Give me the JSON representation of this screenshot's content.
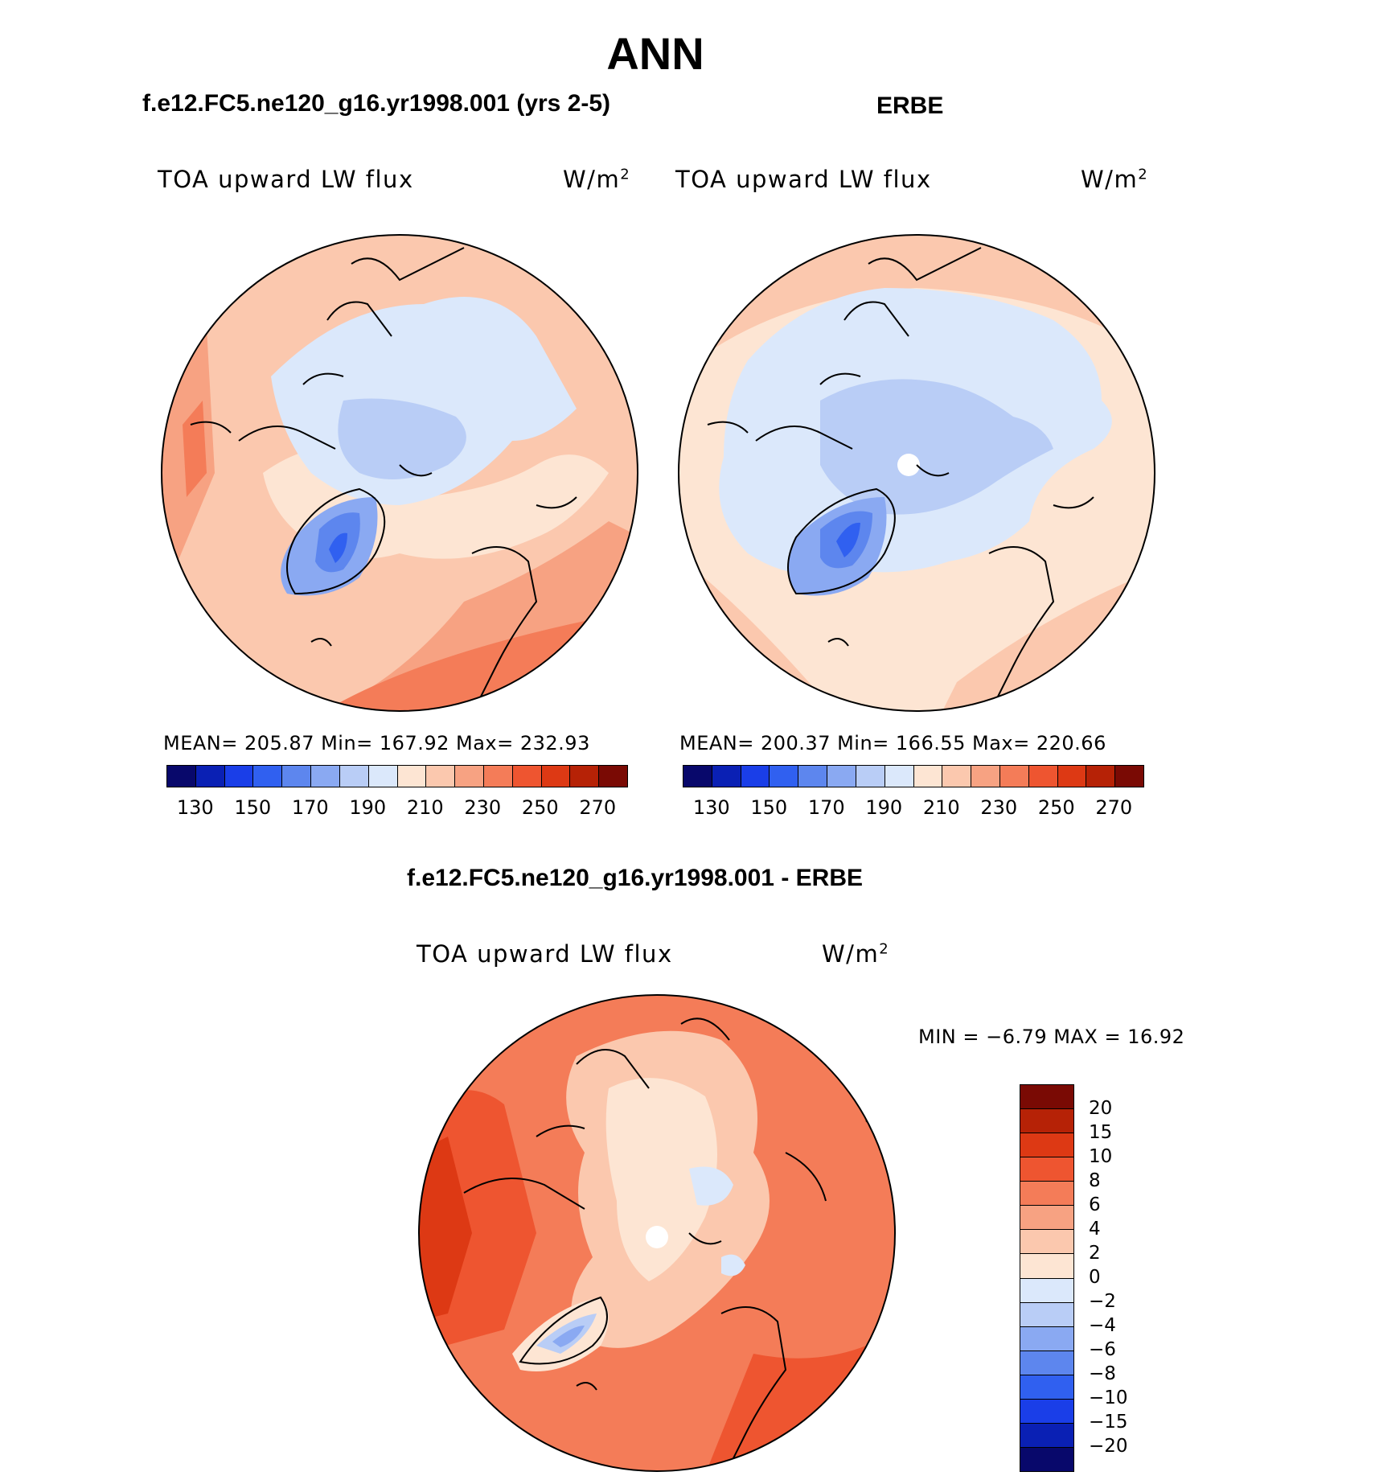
{
  "main_title": "ANN",
  "panels": [
    {
      "case_title": "f.e12.FC5.ne120_g16.yr1998.001 (yrs 2-5)",
      "variable": "TOA upward LW flux",
      "units_base": "W/m",
      "units_exp": "2",
      "stats": "MEAN= 205.87   Min= 167.92   Max= 232.93"
    },
    {
      "case_title": "ERBE",
      "variable": "TOA upward LW flux",
      "units_base": "W/m",
      "units_exp": "2",
      "stats": "MEAN= 200.37   Min= 166.55   Max= 220.66"
    }
  ],
  "diff_panel": {
    "case_title": "f.e12.FC5.ne120_g16.yr1998.001 - ERBE",
    "variable": "TOA upward LW flux",
    "units_base": "W/m",
    "units_exp": "2",
    "minmax": "MIN =   −6.79  MAX =    16.92"
  },
  "colorbar_abs": {
    "ticks": [
      "130",
      "150",
      "170",
      "190",
      "210",
      "230",
      "250",
      "270"
    ],
    "colors": [
      "#08086b",
      "#0a20b4",
      "#1a3ee8",
      "#3060f0",
      "#5d86ee",
      "#8aa9f2",
      "#b9cdf6",
      "#dbe8fb",
      "#fde5d3",
      "#fbc8ae",
      "#f7a282",
      "#f47c58",
      "#ee5530",
      "#dd3914",
      "#b62206",
      "#7a0a04"
    ]
  },
  "colorbar_diff": {
    "labels": [
      "20",
      "15",
      "10",
      "8",
      "6",
      "4",
      "2",
      "0",
      "−2",
      "−4",
      "−6",
      "−8",
      "−10",
      "−15",
      "−20"
    ],
    "colors": [
      "#7a0a04",
      "#b62206",
      "#dd3914",
      "#ee5530",
      "#f47c58",
      "#f7a282",
      "#fbc8ae",
      "#fde5d3",
      "#dbe8fb",
      "#b9cdf6",
      "#8aa9f2",
      "#5d86ee",
      "#3060f0",
      "#1a3ee8",
      "#0a20b4",
      "#08086b"
    ]
  }
}
